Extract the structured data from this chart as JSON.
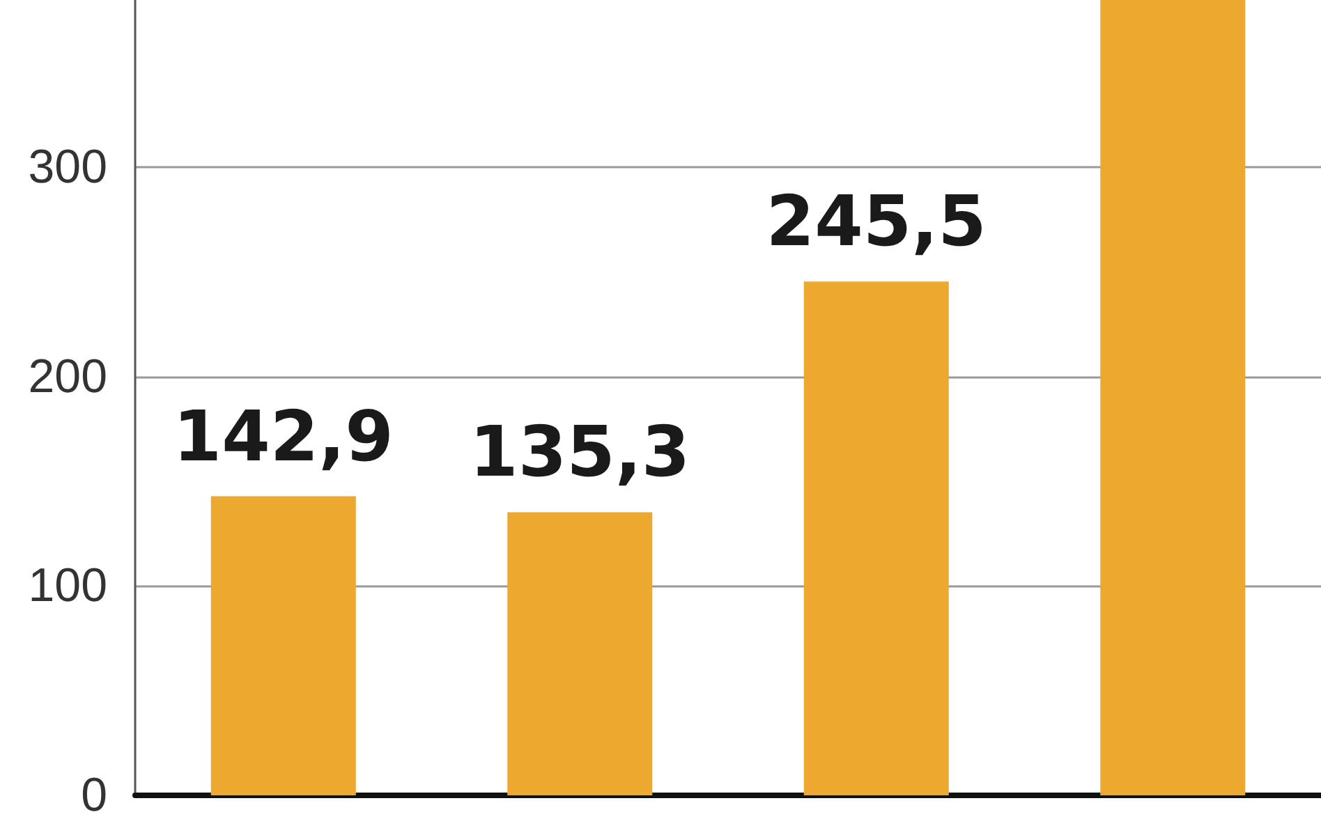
{
  "chart_data": {
    "type": "bar",
    "categories": [
      null,
      null,
      null,
      null
    ],
    "values": [
      142.9,
      135.3,
      245.5,
      380
    ],
    "color": "#eda830",
    "value_labels": [
      "142,9",
      "135,3",
      "245,5",
      null
    ],
    "ylim": [
      0,
      380
    ],
    "yticks": [
      0,
      100,
      200,
      300
    ],
    "grid": "y"
  }
}
